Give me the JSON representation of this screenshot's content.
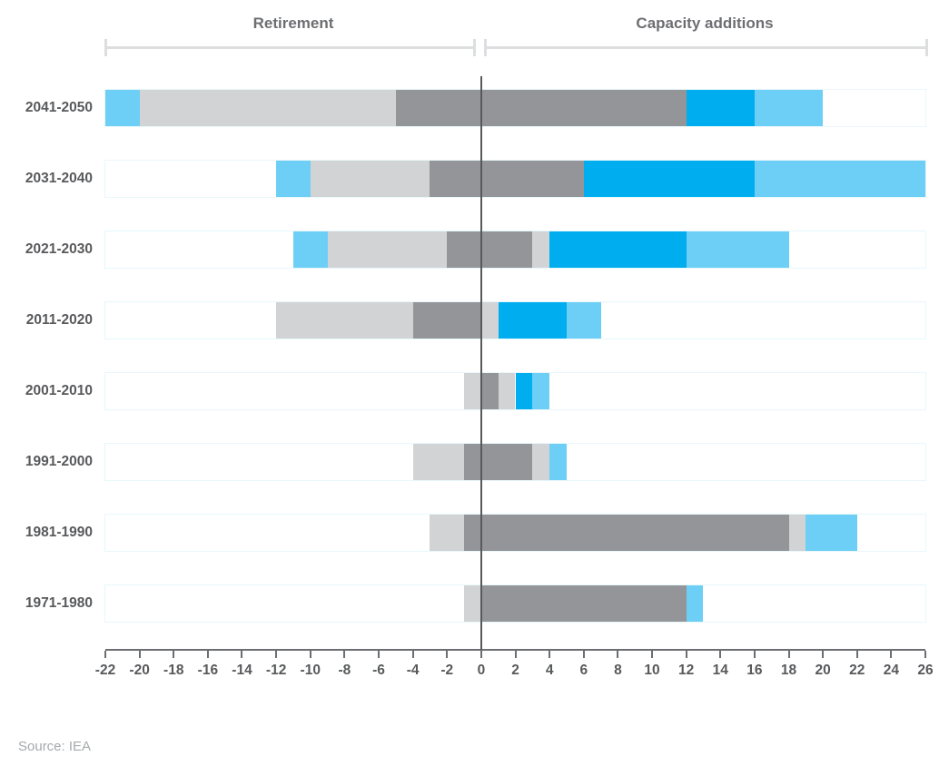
{
  "chart": {
    "left_header": "Retirement",
    "right_header": "Capacity additions",
    "source": "Source: IEA",
    "colors": {
      "lightblue": "#6DCFF6",
      "blue": "#00AEEF",
      "lightgrey": "#D1D3D4",
      "grey": "#939598"
    },
    "zero_line_color": "#58595B",
    "axis_color": "#6D6E71"
  },
  "chart_data": {
    "type": "bar",
    "orientation": "horizontal-diverging-stacked",
    "title": "",
    "group_labels": {
      "negative": "Retirement",
      "positive": "Capacity additions"
    },
    "xlim": [
      -22,
      26
    ],
    "x_tick_step": 2,
    "x_ticks": [
      -22,
      -20,
      -18,
      -16,
      -14,
      -12,
      -10,
      -8,
      -6,
      -4,
      -2,
      0,
      2,
      4,
      6,
      8,
      10,
      12,
      14,
      16,
      18,
      20,
      22,
      24,
      26
    ],
    "grid": false,
    "legend": "none",
    "categories": [
      "2041-2050",
      "2031-2040",
      "2021-2030",
      "2011-2020",
      "2001-2010",
      "1991-2000",
      "1981-1990",
      "1971-1980"
    ],
    "rows": [
      {
        "category": "2041-2050",
        "segments": [
          {
            "color": "lightblue",
            "from": -22,
            "to": -20
          },
          {
            "color": "lightgrey",
            "from": -20,
            "to": -5
          },
          {
            "color": "grey",
            "from": -5,
            "to": 12
          },
          {
            "color": "blue",
            "from": 12,
            "to": 16
          },
          {
            "color": "lightblue",
            "from": 16,
            "to": 20
          }
        ]
      },
      {
        "category": "2031-2040",
        "segments": [
          {
            "color": "lightblue",
            "from": -12,
            "to": -10
          },
          {
            "color": "lightgrey",
            "from": -10,
            "to": -3
          },
          {
            "color": "grey",
            "from": -3,
            "to": 6
          },
          {
            "color": "blue",
            "from": 6,
            "to": 16
          },
          {
            "color": "lightblue",
            "from": 16,
            "to": 26
          }
        ]
      },
      {
        "category": "2021-2030",
        "segments": [
          {
            "color": "lightblue",
            "from": -11,
            "to": -9
          },
          {
            "color": "lightgrey",
            "from": -9,
            "to": -2
          },
          {
            "color": "grey",
            "from": -2,
            "to": 3
          },
          {
            "color": "lightgrey",
            "from": 3,
            "to": 4
          },
          {
            "color": "blue",
            "from": 4,
            "to": 12
          },
          {
            "color": "lightblue",
            "from": 12,
            "to": 18
          }
        ]
      },
      {
        "category": "2011-2020",
        "segments": [
          {
            "color": "lightgrey",
            "from": -12,
            "to": -4
          },
          {
            "color": "grey",
            "from": -4,
            "to": 0
          },
          {
            "color": "lightgrey",
            "from": 0,
            "to": 1
          },
          {
            "color": "blue",
            "from": 1,
            "to": 5
          },
          {
            "color": "lightblue",
            "from": 5,
            "to": 7
          }
        ]
      },
      {
        "category": "2001-2010",
        "segments": [
          {
            "color": "lightgrey",
            "from": -1,
            "to": 0
          },
          {
            "color": "grey",
            "from": 0,
            "to": 1
          },
          {
            "color": "lightgrey",
            "from": 1,
            "to": 2
          },
          {
            "color": "blue",
            "from": 2,
            "to": 3
          },
          {
            "color": "lightblue",
            "from": 3,
            "to": 4
          }
        ]
      },
      {
        "category": "1991-2000",
        "segments": [
          {
            "color": "lightgrey",
            "from": -4,
            "to": -1
          },
          {
            "color": "grey",
            "from": -1,
            "to": 3
          },
          {
            "color": "lightgrey",
            "from": 3,
            "to": 4
          },
          {
            "color": "lightblue",
            "from": 4,
            "to": 5
          }
        ]
      },
      {
        "category": "1981-1990",
        "segments": [
          {
            "color": "lightgrey",
            "from": -3,
            "to": -1
          },
          {
            "color": "grey",
            "from": -1,
            "to": 18
          },
          {
            "color": "lightgrey",
            "from": 18,
            "to": 19
          },
          {
            "color": "lightblue",
            "from": 19,
            "to": 22
          }
        ]
      },
      {
        "category": "1971-1980",
        "segments": [
          {
            "color": "lightgrey",
            "from": -1,
            "to": 0
          },
          {
            "color": "grey",
            "from": 0,
            "to": 12
          },
          {
            "color": "lightblue",
            "from": 12,
            "to": 13
          }
        ]
      }
    ],
    "source": "Source: IEA"
  }
}
